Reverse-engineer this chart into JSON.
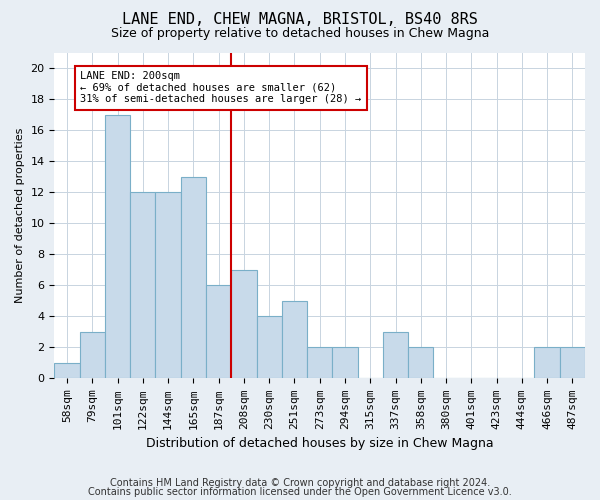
{
  "title1": "LANE END, CHEW MAGNA, BRISTOL, BS40 8RS",
  "title2": "Size of property relative to detached houses in Chew Magna",
  "xlabel": "Distribution of detached houses by size in Chew Magna",
  "ylabel": "Number of detached properties",
  "categories": [
    "58sqm",
    "79sqm",
    "101sqm",
    "122sqm",
    "144sqm",
    "165sqm",
    "187sqm",
    "208sqm",
    "230sqm",
    "251sqm",
    "273sqm",
    "294sqm",
    "315sqm",
    "337sqm",
    "358sqm",
    "380sqm",
    "401sqm",
    "423sqm",
    "444sqm",
    "466sqm",
    "487sqm"
  ],
  "values": [
    1,
    3,
    17,
    12,
    12,
    13,
    6,
    7,
    4,
    5,
    2,
    2,
    0,
    3,
    2,
    0,
    0,
    0,
    0,
    2,
    2
  ],
  "bar_color": "#c8daea",
  "bar_edge_color": "#7aafc8",
  "vline_x_idx": 6.5,
  "vline_color": "#cc0000",
  "annotation_title": "LANE END: 200sqm",
  "annotation_line1": "← 69% of detached houses are smaller (62)",
  "annotation_line2": "31% of semi-detached houses are larger (28) →",
  "annotation_box_color": "#cc0000",
  "ylim": [
    0,
    21
  ],
  "yticks": [
    0,
    2,
    4,
    6,
    8,
    10,
    12,
    14,
    16,
    18,
    20
  ],
  "footer1": "Contains HM Land Registry data © Crown copyright and database right 2024.",
  "footer2": "Contains public sector information licensed under the Open Government Licence v3.0.",
  "bg_color": "#e8eef4",
  "plot_bg_color": "#ffffff",
  "grid_color": "#c8d4e0",
  "title1_fontsize": 11,
  "title2_fontsize": 9,
  "xlabel_fontsize": 9,
  "ylabel_fontsize": 8,
  "tick_fontsize": 8,
  "footer_fontsize": 7
}
